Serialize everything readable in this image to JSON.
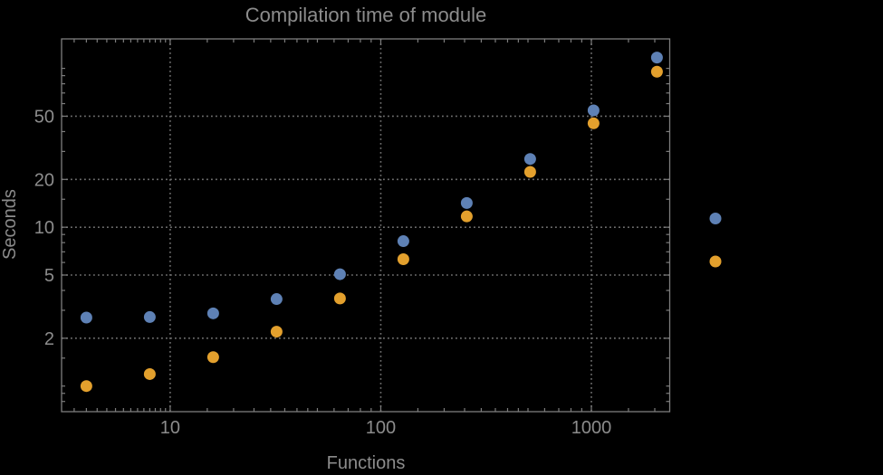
{
  "chart_data": {
    "type": "scatter",
    "title": "Compilation time of module",
    "xlabel": "Functions",
    "ylabel": "Seconds",
    "x_scale": "log",
    "y_scale": "log",
    "x_range": [
      3.05,
      2355
    ],
    "y_range": [
      0.69,
      153.3
    ],
    "x": [
      4,
      8,
      16,
      32,
      64,
      128,
      256,
      512,
      1024,
      2048
    ],
    "series": [
      {
        "name": "series-1",
        "color": "#5E81B5",
        "values": [
          2.7,
          2.72,
          2.87,
          3.53,
          5.06,
          8.17,
          14.2,
          26.9,
          54.4,
          117
        ]
      },
      {
        "name": "series-2",
        "color": "#E3A02D",
        "values": [
          1.0,
          1.19,
          1.52,
          2.2,
          3.56,
          6.29,
          11.7,
          22.3,
          45.1,
          95.3
        ]
      }
    ],
    "x_ticks": {
      "major": [
        {
          "value": 10,
          "label": "10"
        },
        {
          "value": 100,
          "label": "100"
        },
        {
          "value": 1000,
          "label": "1000"
        }
      ],
      "minor": [
        3.5,
        4,
        4.5,
        5,
        5.5,
        6,
        6.5,
        7,
        7.5,
        8,
        8.5,
        9,
        9.5,
        15,
        20,
        25,
        30,
        35,
        40,
        45,
        50,
        60,
        70,
        80,
        90,
        150,
        200,
        250,
        300,
        350,
        400,
        450,
        500,
        600,
        700,
        800,
        900,
        1500,
        2000
      ]
    },
    "y_ticks": {
      "major": [
        {
          "value": 2,
          "label": "2"
        },
        {
          "value": 5,
          "label": "5"
        },
        {
          "value": 10,
          "label": "10"
        },
        {
          "value": 20,
          "label": "20"
        },
        {
          "value": 50,
          "label": "50"
        }
      ],
      "minor": [
        0.8,
        0.9,
        1,
        1.5,
        3,
        4,
        6,
        7,
        8,
        9,
        15,
        30,
        40,
        60,
        70,
        80,
        90,
        100
      ]
    },
    "gridlines": {
      "x": [
        10,
        100,
        1000
      ],
      "y": [
        2,
        5,
        10,
        20,
        50
      ],
      "style": "dotted"
    },
    "legend": {
      "position": "outside-right",
      "markers": [
        {
          "name": "series-1-marker",
          "color": "#5E81B5"
        },
        {
          "name": "series-2-marker",
          "color": "#E3A02D"
        }
      ]
    },
    "colors": {
      "background": "#000000",
      "frame": "#7d7d7d",
      "grid": "#707070",
      "text": "#8c8c8c"
    },
    "marker_diameter_px": 13
  }
}
